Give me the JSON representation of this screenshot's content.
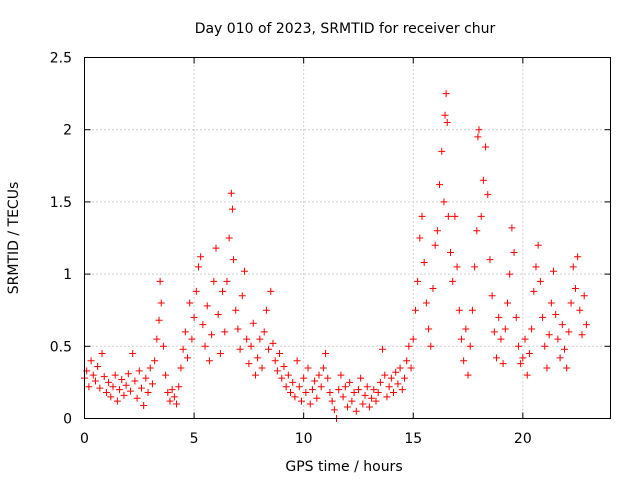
{
  "chart_data": {
    "type": "scatter",
    "title": "Day 010 of 2023, SRMTID for receiver chur",
    "xlabel": "GPS time / hours",
    "ylabel": "SRMTID / TECUs",
    "xlim": [
      0,
      24
    ],
    "ylim": [
      0,
      2.5
    ],
    "x_ticks": [
      0,
      5,
      10,
      15,
      20
    ],
    "x_tick_labels": [
      "0",
      "5",
      "10",
      "15",
      "20"
    ],
    "y_ticks": [
      0,
      0.5,
      1,
      1.5,
      2,
      2.5
    ],
    "y_tick_labels": [
      "0",
      "0.5",
      "1",
      "1.5",
      "2",
      "2.5"
    ],
    "grid": true,
    "marker": "+",
    "marker_color": "#ff0000",
    "series": [
      {
        "name": "SRMTID",
        "points": [
          [
            0.0,
            0.28
          ],
          [
            0.1,
            0.33
          ],
          [
            0.2,
            0.22
          ],
          [
            0.3,
            0.4
          ],
          [
            0.4,
            0.3
          ],
          [
            0.5,
            0.26
          ],
          [
            0.6,
            0.36
          ],
          [
            0.7,
            0.21
          ],
          [
            0.8,
            0.45
          ],
          [
            0.9,
            0.29
          ],
          [
            1.0,
            0.18
          ],
          [
            1.1,
            0.25
          ],
          [
            1.2,
            0.15
          ],
          [
            1.3,
            0.22
          ],
          [
            1.4,
            0.3
          ],
          [
            1.5,
            0.12
          ],
          [
            1.6,
            0.2
          ],
          [
            1.7,
            0.27
          ],
          [
            1.8,
            0.16
          ],
          [
            1.9,
            0.23
          ],
          [
            2.0,
            0.31
          ],
          [
            2.1,
            0.19
          ],
          [
            2.2,
            0.45
          ],
          [
            2.3,
            0.26
          ],
          [
            2.4,
            0.14
          ],
          [
            2.5,
            0.33
          ],
          [
            2.6,
            0.21
          ],
          [
            2.7,
            0.09
          ],
          [
            2.8,
            0.28
          ],
          [
            2.9,
            0.18
          ],
          [
            3.0,
            0.35
          ],
          [
            3.1,
            0.24
          ],
          [
            3.2,
            0.4
          ],
          [
            3.3,
            0.55
          ],
          [
            3.4,
            0.68
          ],
          [
            3.45,
            0.95
          ],
          [
            3.5,
            0.8
          ],
          [
            3.6,
            0.5
          ],
          [
            3.7,
            0.3
          ],
          [
            3.8,
            0.18
          ],
          [
            3.9,
            0.12
          ],
          [
            4.0,
            0.2
          ],
          [
            4.1,
            0.15
          ],
          [
            4.2,
            0.1
          ],
          [
            4.3,
            0.22
          ],
          [
            4.4,
            0.35
          ],
          [
            4.5,
            0.48
          ],
          [
            4.6,
            0.6
          ],
          [
            4.7,
            0.42
          ],
          [
            4.8,
            0.8
          ],
          [
            4.9,
            0.55
          ],
          [
            5.0,
            0.7
          ],
          [
            5.1,
            0.88
          ],
          [
            5.2,
            1.05
          ],
          [
            5.3,
            1.12
          ],
          [
            5.4,
            0.65
          ],
          [
            5.5,
            0.5
          ],
          [
            5.6,
            0.78
          ],
          [
            5.7,
            0.4
          ],
          [
            5.8,
            0.58
          ],
          [
            5.9,
            0.95
          ],
          [
            6.0,
            1.18
          ],
          [
            6.1,
            0.72
          ],
          [
            6.2,
            0.45
          ],
          [
            6.3,
            0.88
          ],
          [
            6.4,
            0.6
          ],
          [
            6.5,
            0.95
          ],
          [
            6.6,
            1.25
          ],
          [
            6.7,
            1.56
          ],
          [
            6.75,
            1.45
          ],
          [
            6.8,
            1.1
          ],
          [
            6.9,
            0.75
          ],
          [
            7.0,
            0.62
          ],
          [
            7.1,
            0.48
          ],
          [
            7.2,
            0.85
          ],
          [
            7.3,
            1.02
          ],
          [
            7.4,
            0.55
          ],
          [
            7.5,
            0.38
          ],
          [
            7.6,
            0.5
          ],
          [
            7.7,
            0.66
          ],
          [
            7.8,
            0.3
          ],
          [
            7.9,
            0.42
          ],
          [
            8.0,
            0.55
          ],
          [
            8.1,
            0.35
          ],
          [
            8.2,
            0.6
          ],
          [
            8.3,
            0.75
          ],
          [
            8.4,
            0.48
          ],
          [
            8.5,
            0.88
          ],
          [
            8.6,
            0.52
          ],
          [
            8.7,
            0.4
          ],
          [
            8.8,
            0.33
          ],
          [
            8.9,
            0.45
          ],
          [
            9.0,
            0.28
          ],
          [
            9.1,
            0.36
          ],
          [
            9.2,
            0.22
          ],
          [
            9.3,
            0.3
          ],
          [
            9.4,
            0.18
          ],
          [
            9.5,
            0.25
          ],
          [
            9.6,
            0.15
          ],
          [
            9.7,
            0.4
          ],
          [
            9.8,
            0.22
          ],
          [
            9.9,
            0.12
          ],
          [
            10.0,
            0.28
          ],
          [
            10.1,
            0.18
          ],
          [
            10.2,
            0.35
          ],
          [
            10.3,
            0.1
          ],
          [
            10.4,
            0.2
          ],
          [
            10.5,
            0.26
          ],
          [
            10.6,
            0.14
          ],
          [
            10.7,
            0.3
          ],
          [
            10.8,
            0.22
          ],
          [
            10.9,
            0.35
          ],
          [
            11.0,
            0.45
          ],
          [
            11.1,
            0.28
          ],
          [
            11.2,
            0.18
          ],
          [
            11.3,
            0.12
          ],
          [
            11.4,
            0.06
          ],
          [
            11.5,
            0.0
          ],
          [
            11.6,
            0.2
          ],
          [
            11.7,
            0.3
          ],
          [
            11.8,
            0.15
          ],
          [
            11.9,
            0.22
          ],
          [
            12.0,
            0.08
          ],
          [
            12.1,
            0.25
          ],
          [
            12.2,
            0.12
          ],
          [
            12.3,
            0.18
          ],
          [
            12.4,
            0.05
          ],
          [
            12.5,
            0.2
          ],
          [
            12.6,
            0.28
          ],
          [
            12.7,
            0.1
          ],
          [
            12.8,
            0.16
          ],
          [
            12.9,
            0.22
          ],
          [
            13.0,
            0.08
          ],
          [
            13.1,
            0.14
          ],
          [
            13.2,
            0.2
          ],
          [
            13.3,
            0.12
          ],
          [
            13.4,
            0.18
          ],
          [
            13.5,
            0.25
          ],
          [
            13.6,
            0.48
          ],
          [
            13.7,
            0.3
          ],
          [
            13.8,
            0.15
          ],
          [
            13.9,
            0.22
          ],
          [
            14.0,
            0.28
          ],
          [
            14.1,
            0.18
          ],
          [
            14.2,
            0.32
          ],
          [
            14.3,
            0.24
          ],
          [
            14.4,
            0.35
          ],
          [
            14.5,
            0.2
          ],
          [
            14.6,
            0.28
          ],
          [
            14.7,
            0.4
          ],
          [
            14.8,
            0.5
          ],
          [
            14.9,
            0.35
          ],
          [
            15.0,
            0.55
          ],
          [
            15.1,
            0.75
          ],
          [
            15.2,
            0.95
          ],
          [
            15.3,
            1.25
          ],
          [
            15.4,
            1.4
          ],
          [
            15.5,
            1.08
          ],
          [
            15.6,
            0.8
          ],
          [
            15.7,
            0.62
          ],
          [
            15.8,
            0.5
          ],
          [
            15.9,
            0.9
          ],
          [
            16.0,
            1.2
          ],
          [
            16.1,
            1.3
          ],
          [
            16.2,
            1.62
          ],
          [
            16.3,
            1.85
          ],
          [
            16.4,
            1.5
          ],
          [
            16.45,
            2.1
          ],
          [
            16.5,
            2.25
          ],
          [
            16.55,
            2.05
          ],
          [
            16.6,
            1.4
          ],
          [
            16.7,
            1.15
          ],
          [
            16.8,
            0.95
          ],
          [
            16.9,
            1.4
          ],
          [
            17.0,
            1.05
          ],
          [
            17.1,
            0.75
          ],
          [
            17.2,
            0.55
          ],
          [
            17.3,
            0.4
          ],
          [
            17.4,
            0.62
          ],
          [
            17.5,
            0.3
          ],
          [
            17.6,
            0.5
          ],
          [
            17.7,
            0.75
          ],
          [
            17.8,
            1.05
          ],
          [
            17.9,
            1.3
          ],
          [
            17.95,
            1.95
          ],
          [
            18.0,
            2.0
          ],
          [
            18.1,
            1.4
          ],
          [
            18.2,
            1.65
          ],
          [
            18.3,
            1.88
          ],
          [
            18.4,
            1.55
          ],
          [
            18.5,
            1.1
          ],
          [
            18.6,
            0.85
          ],
          [
            18.7,
            0.6
          ],
          [
            18.8,
            0.42
          ],
          [
            18.9,
            0.7
          ],
          [
            19.0,
            0.55
          ],
          [
            19.1,
            0.38
          ],
          [
            19.2,
            0.62
          ],
          [
            19.3,
            0.8
          ],
          [
            19.4,
            1.0
          ],
          [
            19.5,
            1.32
          ],
          [
            19.6,
            1.15
          ],
          [
            19.7,
            0.7
          ],
          [
            19.8,
            0.5
          ],
          [
            19.9,
            0.38
          ],
          [
            20.0,
            0.42
          ],
          [
            20.1,
            0.55
          ],
          [
            20.2,
            0.3
          ],
          [
            20.3,
            0.45
          ],
          [
            20.4,
            0.62
          ],
          [
            20.5,
            0.88
          ],
          [
            20.6,
            1.05
          ],
          [
            20.7,
            1.2
          ],
          [
            20.8,
            0.95
          ],
          [
            20.9,
            0.7
          ],
          [
            21.0,
            0.5
          ],
          [
            21.1,
            0.35
          ],
          [
            21.2,
            0.58
          ],
          [
            21.3,
            0.8
          ],
          [
            21.4,
            1.02
          ],
          [
            21.5,
            0.72
          ],
          [
            21.6,
            0.55
          ],
          [
            21.7,
            0.42
          ],
          [
            21.8,
            0.65
          ],
          [
            21.9,
            0.48
          ],
          [
            22.0,
            0.35
          ],
          [
            22.1,
            0.6
          ],
          [
            22.2,
            0.8
          ],
          [
            22.3,
            1.05
          ],
          [
            22.4,
            0.9
          ],
          [
            22.5,
            1.12
          ],
          [
            22.6,
            0.75
          ],
          [
            22.7,
            0.58
          ],
          [
            22.8,
            0.85
          ],
          [
            22.9,
            0.65
          ]
        ]
      }
    ]
  }
}
